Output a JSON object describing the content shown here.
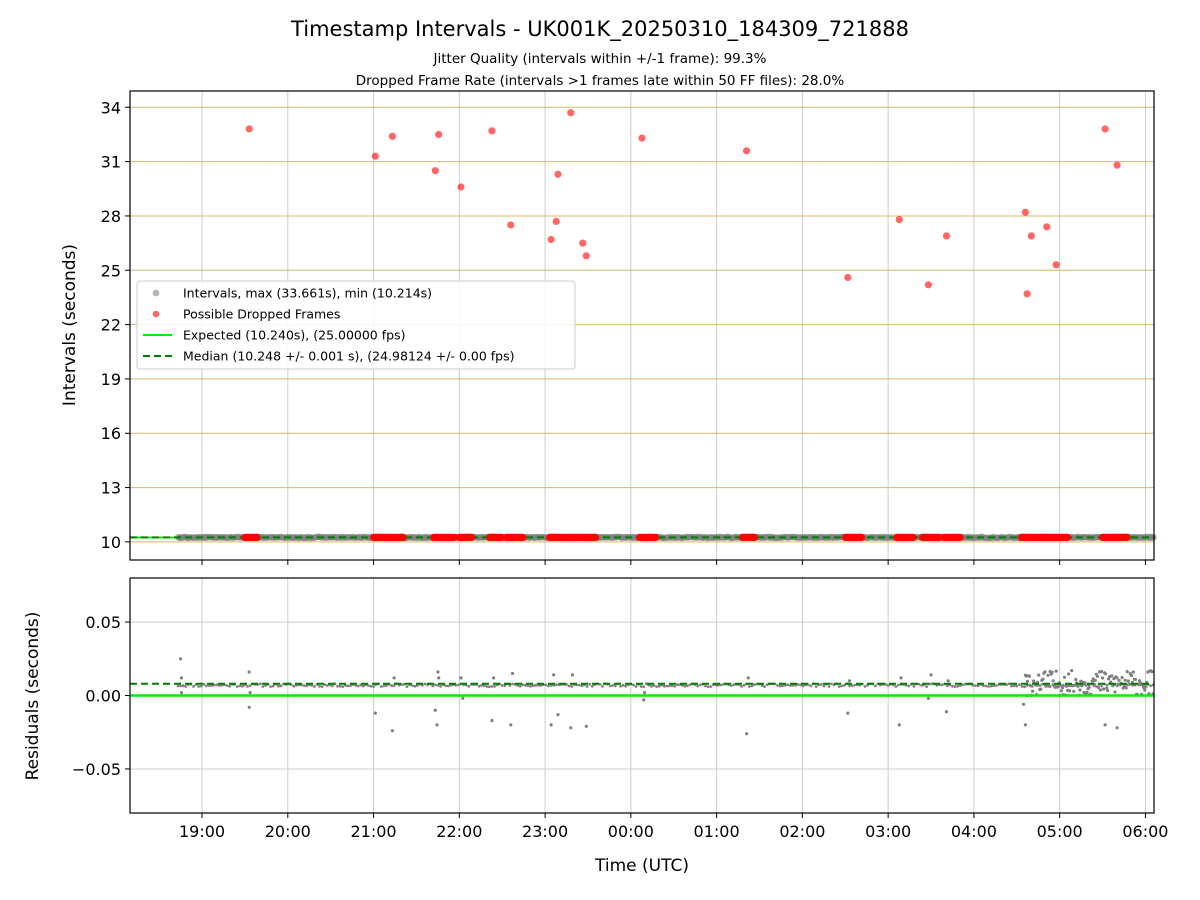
{
  "figure": {
    "title": "Timestamp Intervals - UK001K_20250310_184309_721888",
    "subtitle_1": "Jitter Quality (intervals within +/-1 frame): 99.3%",
    "subtitle_2": "Dropped Frame Rate (intervals >1 frames late within 50 FF files): 28.0%",
    "xlabel": "Time (UTC)",
    "x_tick_labels": [
      "19:00",
      "20:00",
      "21:00",
      "22:00",
      "23:00",
      "00:00",
      "01:00",
      "02:00",
      "03:00",
      "04:00",
      "05:00",
      "06:00"
    ],
    "colors": {
      "intervals": "#808080",
      "dropped": "#ff0000",
      "expected": "#00ee00",
      "median": "#007f00",
      "grid_top": "#d4b86a",
      "grid": "#cccccc"
    }
  },
  "chart_data": [
    {
      "type": "scatter",
      "panel": "intervals",
      "ylabel": "Intervals (seconds)",
      "ylim": [
        9.0,
        34.9
      ],
      "yticks": [
        10,
        13,
        16,
        19,
        22,
        25,
        28,
        31,
        34
      ],
      "xlim_hours": [
        18.16,
        30.1
      ],
      "x_unit": "hours UTC from 00:00 of 2025-03-10 (values above 24 are after midnight on 2025-03-11)",
      "grid": true,
      "legend_position": "center-left",
      "legend": [
        "Intervals, max (33.661s), min (10.214s)",
        "Possible Dropped Frames",
        "Expected (10.240s), (25.00000 fps)",
        "Median (10.248 +/- 0.001 s), (24.98124 +/- 0.00 fps)"
      ],
      "series": [
        {
          "name": "Intervals, max (33.661s), min (10.214s)",
          "style": "points",
          "x_range_hours": [
            18.72,
            30.1
          ],
          "value_approx": 10.248
        },
        {
          "name": "Possible Dropped Frames",
          "style": "points",
          "points": [
            [
              19.55,
              32.8
            ],
            [
              21.02,
              31.3
            ],
            [
              21.22,
              32.4
            ],
            [
              21.72,
              30.5
            ],
            [
              21.76,
              32.5
            ],
            [
              22.02,
              29.6
            ],
            [
              22.38,
              32.7
            ],
            [
              22.6,
              27.5
            ],
            [
              23.07,
              26.7
            ],
            [
              23.13,
              27.7
            ],
            [
              23.15,
              30.3
            ],
            [
              23.3,
              33.7
            ],
            [
              23.44,
              26.5
            ],
            [
              23.48,
              25.8
            ],
            [
              24.13,
              32.3
            ],
            [
              25.35,
              31.6
            ],
            [
              26.53,
              24.6
            ],
            [
              27.13,
              27.8
            ],
            [
              27.47,
              24.2
            ],
            [
              27.68,
              26.9
            ],
            [
              28.6,
              28.2
            ],
            [
              28.62,
              23.7
            ],
            [
              28.67,
              26.9
            ],
            [
              28.85,
              27.4
            ],
            [
              28.96,
              25.3
            ],
            [
              29.53,
              32.8
            ],
            [
              29.67,
              30.8
            ]
          ],
          "baseline_clusters_hours": [
            [
              19.5,
              19.65
            ],
            [
              21.0,
              21.35
            ],
            [
              21.7,
              21.95
            ],
            [
              22.0,
              22.15
            ],
            [
              22.35,
              22.5
            ],
            [
              22.55,
              22.75
            ],
            [
              23.05,
              23.6
            ],
            [
              24.1,
              24.3
            ],
            [
              25.3,
              25.45
            ],
            [
              26.5,
              26.7
            ],
            [
              27.1,
              27.3
            ],
            [
              27.4,
              27.6
            ],
            [
              27.65,
              27.85
            ],
            [
              28.55,
              29.1
            ],
            [
              29.5,
              29.8
            ]
          ],
          "baseline_value": 10.248
        },
        {
          "name": "Expected (10.240s), (25.00000 fps)",
          "style": "solid",
          "value": 10.24
        },
        {
          "name": "Median (10.248 +/- 0.001 s), (24.98124 +/- 0.00 fps)",
          "style": "dashed",
          "value": 10.248
        }
      ]
    },
    {
      "type": "scatter",
      "panel": "residuals",
      "ylabel": "Residuals (seconds)",
      "ylim": [
        -0.08,
        0.08
      ],
      "yticks": [
        0.05,
        0.0,
        -0.05
      ],
      "ytick_labels": [
        "0.05",
        "0.00",
        "−0.05"
      ],
      "xlim_hours": [
        18.16,
        30.1
      ],
      "grid": true,
      "series": [
        {
          "name": "Expected",
          "style": "solid",
          "value": 0.0
        },
        {
          "name": "Median",
          "style": "dashed",
          "value": 0.008
        },
        {
          "name": "Residuals",
          "style": "points",
          "points": [
            [
              18.75,
              0.025
            ],
            [
              18.76,
              0.012
            ],
            [
              18.76,
              0.002
            ],
            [
              19.55,
              0.016
            ],
            [
              19.55,
              -0.008
            ],
            [
              19.56,
              0.002
            ],
            [
              21.02,
              -0.012
            ],
            [
              21.22,
              -0.024
            ],
            [
              21.24,
              0.012
            ],
            [
              21.72,
              -0.01
            ],
            [
              21.74,
              -0.02
            ],
            [
              21.75,
              0.016
            ],
            [
              21.76,
              0.012
            ],
            [
              22.02,
              0.012
            ],
            [
              22.04,
              -0.002
            ],
            [
              22.38,
              -0.017
            ],
            [
              22.4,
              0.012
            ],
            [
              22.6,
              -0.02
            ],
            [
              22.62,
              0.015
            ],
            [
              23.07,
              -0.02
            ],
            [
              23.1,
              0.014
            ],
            [
              23.15,
              -0.013
            ],
            [
              23.3,
              -0.022
            ],
            [
              23.32,
              0.014
            ],
            [
              23.48,
              -0.021
            ],
            [
              24.15,
              -0.003
            ],
            [
              24.16,
              0.002
            ],
            [
              25.35,
              -0.026
            ],
            [
              25.37,
              0.012
            ],
            [
              26.53,
              -0.012
            ],
            [
              26.55,
              0.01
            ],
            [
              27.13,
              -0.02
            ],
            [
              27.15,
              0.012
            ],
            [
              27.47,
              -0.002
            ],
            [
              27.5,
              0.014
            ],
            [
              27.68,
              -0.011
            ],
            [
              27.7,
              0.01
            ],
            [
              28.58,
              -0.006
            ],
            [
              28.6,
              -0.02
            ],
            [
              28.62,
              0.0
            ],
            [
              29.53,
              -0.02
            ],
            [
              29.67,
              -0.022
            ]
          ],
          "dense_band": {
            "x_range_hours": [
              28.6,
              30.1
            ],
            "y_range": [
              0.0,
              0.017
            ]
          }
        }
      ]
    }
  ]
}
